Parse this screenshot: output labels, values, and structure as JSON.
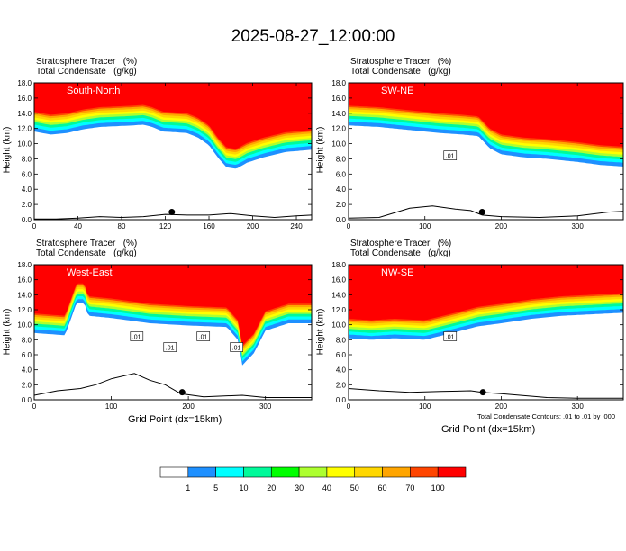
{
  "title": "2025-08-27_12:00:00",
  "chart_data": [
    {
      "type": "heatmap",
      "id": "p1",
      "name": "South-North",
      "header": [
        "Stratosphere Tracer   (%)",
        "Total Condensate   (g/kg)"
      ],
      "ylabel": "Height (km)",
      "xlim": [
        0,
        254
      ],
      "ylim": [
        0,
        18
      ],
      "xticks": [
        0,
        40,
        80,
        120,
        160,
        200,
        240
      ],
      "yticks": [
        0.0,
        2.0,
        4.0,
        6.0,
        8.0,
        10.0,
        12.0,
        14.0,
        16.0,
        18.0
      ],
      "tropopause_profile": [
        [
          0,
          14.2
        ],
        [
          15,
          13.8
        ],
        [
          30,
          14.0
        ],
        [
          45,
          14.5
        ],
        [
          60,
          14.8
        ],
        [
          75,
          14.9
        ],
        [
          90,
          15.0
        ],
        [
          100,
          15.1
        ],
        [
          108,
          14.8
        ],
        [
          118,
          14.2
        ],
        [
          130,
          14.1
        ],
        [
          140,
          14.0
        ],
        [
          150,
          13.4
        ],
        [
          160,
          12.4
        ],
        [
          168,
          10.8
        ],
        [
          176,
          9.5
        ],
        [
          185,
          9.3
        ],
        [
          195,
          10.1
        ],
        [
          210,
          10.8
        ],
        [
          230,
          11.5
        ],
        [
          254,
          11.8
        ]
      ],
      "terrain": [
        [
          0,
          0.1
        ],
        [
          20,
          0.1
        ],
        [
          40,
          0.2
        ],
        [
          60,
          0.4
        ],
        [
          80,
          0.3
        ],
        [
          100,
          0.4
        ],
        [
          120,
          0.7
        ],
        [
          140,
          0.6
        ],
        [
          160,
          0.6
        ],
        [
          180,
          0.8
        ],
        [
          200,
          0.5
        ],
        [
          220,
          0.3
        ],
        [
          240,
          0.5
        ],
        [
          254,
          0.6
        ]
      ],
      "marker_x": 126
    },
    {
      "type": "heatmap",
      "id": "p2",
      "name": "SW-NE",
      "header": [
        "Stratosphere Tracer   (%)",
        "Total Condensate   (g/kg)"
      ],
      "ylabel": "Height (km)",
      "xlim": [
        0,
        360
      ],
      "ylim": [
        0,
        18
      ],
      "xticks": [
        0,
        100,
        200,
        300
      ],
      "yticks": [
        0.0,
        2.0,
        4.0,
        6.0,
        8.0,
        10.0,
        12.0,
        14.0,
        16.0,
        18.0
      ],
      "tropopause_profile": [
        [
          0,
          15.0
        ],
        [
          40,
          14.8
        ],
        [
          80,
          14.4
        ],
        [
          120,
          14.0
        ],
        [
          150,
          13.8
        ],
        [
          170,
          13.6
        ],
        [
          185,
          12.0
        ],
        [
          200,
          11.2
        ],
        [
          230,
          10.8
        ],
        [
          260,
          10.6
        ],
        [
          300,
          10.2
        ],
        [
          330,
          9.8
        ],
        [
          360,
          9.6
        ]
      ],
      "terrain": [
        [
          0,
          0.2
        ],
        [
          40,
          0.3
        ],
        [
          80,
          1.5
        ],
        [
          110,
          1.8
        ],
        [
          140,
          1.4
        ],
        [
          160,
          1.2
        ],
        [
          175,
          0.6
        ],
        [
          200,
          0.4
        ],
        [
          250,
          0.3
        ],
        [
          300,
          0.5
        ],
        [
          340,
          1.0
        ],
        [
          360,
          1.1
        ]
      ],
      "marker_x": 175,
      "contour_labels": [
        ".01"
      ]
    },
    {
      "type": "heatmap",
      "id": "p3",
      "name": "West-East",
      "header": [
        "Stratosphere Tracer   (%)",
        "Total Condensate   (g/kg)"
      ],
      "ylabel": "Height (km)",
      "xlim": [
        0,
        360
      ],
      "ylim": [
        0,
        18
      ],
      "xticks": [
        0,
        100,
        200,
        300
      ],
      "yticks": [
        0.0,
        2.0,
        4.0,
        6.0,
        8.0,
        10.0,
        12.0,
        14.0,
        16.0,
        18.0
      ],
      "tropopause_profile": [
        [
          0,
          11.5
        ],
        [
          40,
          11.2
        ],
        [
          55,
          15.5
        ],
        [
          65,
          15.5
        ],
        [
          70,
          13.8
        ],
        [
          100,
          13.5
        ],
        [
          150,
          12.8
        ],
        [
          200,
          12.5
        ],
        [
          250,
          12.3
        ],
        [
          265,
          10.5
        ],
        [
          270,
          7.2
        ],
        [
          285,
          8.8
        ],
        [
          300,
          11.8
        ],
        [
          330,
          12.8
        ],
        [
          360,
          12.8
        ]
      ],
      "terrain": [
        [
          0,
          0.6
        ],
        [
          30,
          1.2
        ],
        [
          60,
          1.5
        ],
        [
          80,
          2.0
        ],
        [
          100,
          2.8
        ],
        [
          130,
          3.5
        ],
        [
          150,
          2.6
        ],
        [
          170,
          2.0
        ],
        [
          190,
          0.8
        ],
        [
          220,
          0.4
        ],
        [
          270,
          0.6
        ],
        [
          300,
          0.3
        ],
        [
          360,
          0.3
        ]
      ],
      "marker_x": 192,
      "contour_labels": [
        ".01",
        ".01",
        ".01",
        ".01"
      ]
    },
    {
      "type": "heatmap",
      "id": "p4",
      "name": "NW-SE",
      "header": [
        "Stratosphere Tracer   (%)",
        "Total Condensate   (g/kg)"
      ],
      "ylabel": "Height (km)",
      "xlim": [
        0,
        360
      ],
      "ylim": [
        0,
        18
      ],
      "xticks": [
        0,
        100,
        200,
        300
      ],
      "yticks": [
        0.0,
        2.0,
        4.0,
        6.0,
        8.0,
        10.0,
        12.0,
        14.0,
        16.0,
        18.0
      ],
      "tropopause_profile": [
        [
          0,
          10.8
        ],
        [
          30,
          10.6
        ],
        [
          60,
          10.8
        ],
        [
          100,
          10.6
        ],
        [
          140,
          11.6
        ],
        [
          170,
          12.4
        ],
        [
          200,
          12.8
        ],
        [
          240,
          13.4
        ],
        [
          280,
          13.8
        ],
        [
          320,
          14.0
        ],
        [
          360,
          14.2
        ]
      ],
      "terrain": [
        [
          0,
          1.5
        ],
        [
          40,
          1.2
        ],
        [
          80,
          1.0
        ],
        [
          120,
          1.1
        ],
        [
          160,
          1.2
        ],
        [
          175,
          1.0
        ],
        [
          200,
          0.8
        ],
        [
          260,
          0.3
        ],
        [
          300,
          0.2
        ],
        [
          360,
          0.2
        ]
      ],
      "marker_x": 176,
      "contour_labels": [
        ".01"
      ]
    }
  ],
  "xlabel": "Grid Point (dx=15km)",
  "contour_note": "Total Condensate Contours: .01 to .01 by .000",
  "colorbar": {
    "colors": [
      "#ffffff",
      "#1e90ff",
      "#00ffff",
      "#00fa9a",
      "#00ff00",
      "#adff2f",
      "#ffff00",
      "#ffd700",
      "#ffa500",
      "#ff4500",
      "#ff0000"
    ],
    "labels": [
      "1",
      "5",
      "10",
      "20",
      "30",
      "40",
      "50",
      "60",
      "70",
      "100"
    ]
  }
}
